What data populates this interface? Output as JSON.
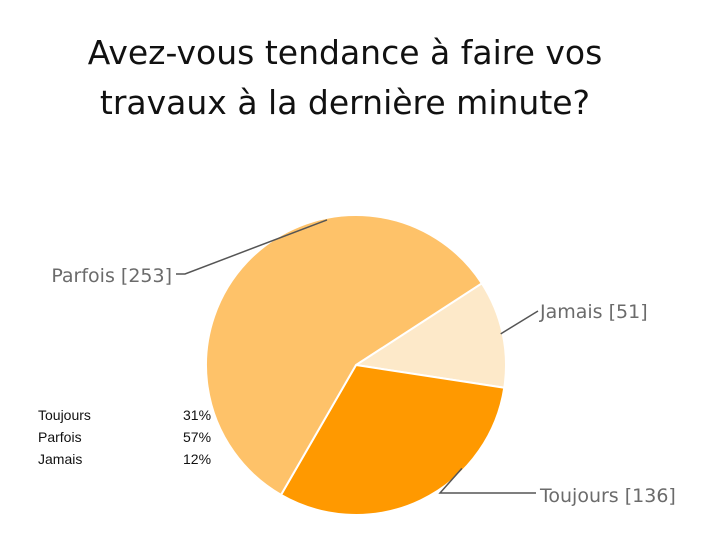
{
  "chart_data": {
    "type": "pie",
    "title": "Avez-vous tendance à faire vos travaux à la dernière minute?",
    "title_lines": [
      "Avez-vous tendance à faire vos",
      "travaux à la dernière minute?"
    ],
    "slices": [
      {
        "label": "Jamais",
        "value": 51,
        "callout": "Jamais [51]",
        "color": "#fde9c9"
      },
      {
        "label": "Toujours",
        "value": 136,
        "callout": "Toujours [136]",
        "color": "#ff9900"
      },
      {
        "label": "Parfois",
        "value": 253,
        "callout": "Parfois [253]",
        "color": "#fec269"
      }
    ],
    "legend_table": [
      {
        "label": "Toujours",
        "percent": "31%"
      },
      {
        "label": "Parfois",
        "percent": "57%"
      },
      {
        "label": "Jamais",
        "percent": "12%"
      }
    ]
  }
}
